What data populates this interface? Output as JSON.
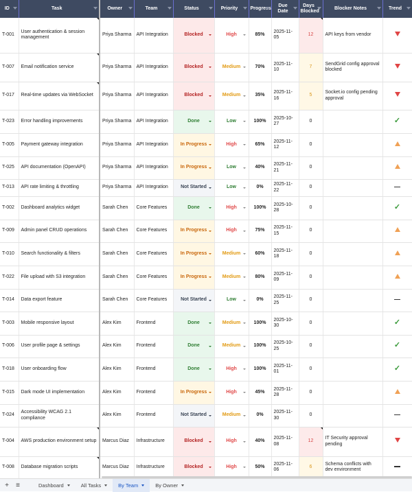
{
  "columns": [
    "ID",
    "Task",
    "Owner",
    "Team",
    "Status",
    "Priority",
    "Progress",
    "Due Date",
    "Days Blocked",
    "Blocker Notes",
    "Trend"
  ],
  "rows": [
    {
      "id": "T-001",
      "task": "User authentication & session management",
      "owner": "Priya Sharma",
      "team": "API Integration",
      "status": "Blocked",
      "priority": "High",
      "progress": "85%",
      "due": "2025-11-05",
      "days": "12",
      "notes": "API keys from vendor",
      "trend": "down"
    },
    {
      "id": "T-007",
      "task": "Email notification service",
      "owner": "Priya Sharma",
      "team": "API Integration",
      "status": "Blocked",
      "priority": "Medium",
      "progress": "70%",
      "due": "2025-11-10",
      "days": "7",
      "notes": "SendGrid config approval blocked",
      "trend": "down"
    },
    {
      "id": "T-017",
      "task": "Real-time updates via WebSocket",
      "owner": "Priya Sharma",
      "team": "API Integration",
      "status": "Blocked",
      "priority": "Medium",
      "progress": "35%",
      "due": "2025-11-16",
      "days": "5",
      "notes": "Socket.io config pending approval",
      "trend": "down"
    },
    {
      "id": "T-023",
      "task": "Error handling improvements",
      "owner": "Priya Sharma",
      "team": "API Integration",
      "status": "Done",
      "priority": "Low",
      "progress": "100%",
      "due": "2025-10-27",
      "days": "0",
      "notes": "",
      "trend": "check"
    },
    {
      "id": "T-005",
      "task": "Payment gateway integration",
      "owner": "Priya Sharma",
      "team": "API Integration",
      "status": "In Progress",
      "priority": "High",
      "progress": "65%",
      "due": "2025-11-12",
      "days": "0",
      "notes": "",
      "trend": "up"
    },
    {
      "id": "T-025",
      "task": "API documentation (OpenAPI)",
      "owner": "Priya Sharma",
      "team": "API Integration",
      "status": "In Progress",
      "priority": "Low",
      "progress": "40%",
      "due": "2025-11-21",
      "days": "0",
      "notes": "",
      "trend": "up"
    },
    {
      "id": "T-013",
      "task": "API rate limiting & throttling",
      "owner": "Priya Sharma",
      "team": "API Integration",
      "status": "Not Started",
      "priority": "Low",
      "progress": "0%",
      "due": "2025-11-22",
      "days": "0",
      "notes": "",
      "trend": "flat"
    },
    {
      "id": "T-002",
      "task": "Dashboard analytics widget",
      "owner": "Sarah Chen",
      "team": "Core Features",
      "status": "Done",
      "priority": "High",
      "progress": "100%",
      "due": "2025-10-28",
      "days": "0",
      "notes": "",
      "trend": "check"
    },
    {
      "id": "T-009",
      "task": "Admin panel CRUD operations",
      "owner": "Sarah Chen",
      "team": "Core Features",
      "status": "In Progress",
      "priority": "High",
      "progress": "75%",
      "due": "2025-11-15",
      "days": "0",
      "notes": "",
      "trend": "up"
    },
    {
      "id": "T-010",
      "task": "Search functionality & filters",
      "owner": "Sarah Chen",
      "team": "Core Features",
      "status": "In Progress",
      "priority": "Medium",
      "progress": "60%",
      "due": "2025-11-18",
      "days": "0",
      "notes": "",
      "trend": "up"
    },
    {
      "id": "T-022",
      "task": "File upload with S3 integration",
      "owner": "Sarah Chen",
      "team": "Core Features",
      "status": "In Progress",
      "priority": "Medium",
      "progress": "80%",
      "due": "2025-11-09",
      "days": "0",
      "notes": "",
      "trend": "up"
    },
    {
      "id": "T-014",
      "task": "Data export feature",
      "owner": "Sarah Chen",
      "team": "Core Features",
      "status": "Not Started",
      "priority": "Low",
      "progress": "0%",
      "due": "2025-11-25",
      "days": "0",
      "notes": "",
      "trend": "flat"
    },
    {
      "id": "T-003",
      "task": "Mobile responsive layout",
      "owner": "Alex Kim",
      "team": "Frontend",
      "status": "Done",
      "priority": "Medium",
      "progress": "100%",
      "due": "2025-10-30",
      "days": "0",
      "notes": "",
      "trend": "check"
    },
    {
      "id": "T-006",
      "task": "User profile page & settings",
      "owner": "Alex Kim",
      "team": "Frontend",
      "status": "Done",
      "priority": "Medium",
      "progress": "100%",
      "due": "2025-10-25",
      "days": "0",
      "notes": "",
      "trend": "check"
    },
    {
      "id": "T-018",
      "task": "User onboarding flow",
      "owner": "Alex Kim",
      "team": "Frontend",
      "status": "Done",
      "priority": "High",
      "progress": "100%",
      "due": "2025-11-01",
      "days": "0",
      "notes": "",
      "trend": "check"
    },
    {
      "id": "T-015",
      "task": "Dark mode UI implementation",
      "owner": "Alex Kim",
      "team": "Frontend",
      "status": "In Progress",
      "priority": "High",
      "progress": "45%",
      "due": "2025-11-28",
      "days": "0",
      "notes": "",
      "trend": "up"
    },
    {
      "id": "T-024",
      "task": "Accessibility WCAG 2.1 compliance",
      "owner": "Alex Kim",
      "team": "Frontend",
      "status": "Not Started",
      "priority": "Medium",
      "progress": "0%",
      "due": "2025-11-30",
      "days": "0",
      "notes": "",
      "trend": "flat"
    },
    {
      "id": "T-004",
      "task": "AWS production environment setup",
      "owner": "Marcus Diaz",
      "team": "Infrastructure",
      "status": "Blocked",
      "priority": "High",
      "progress": "40%",
      "due": "2025-11-08",
      "days": "12",
      "notes": "IT Security approval pending",
      "trend": "down"
    },
    {
      "id": "T-008",
      "task": "Database migration scripts",
      "owner": "Marcus Diaz",
      "team": "Infrastructure",
      "status": "Blocked",
      "priority": "High",
      "progress": "50%",
      "due": "2025-11-06",
      "days": "6",
      "notes": "Schema conflicts with dev environment",
      "trend": "flat"
    }
  ],
  "sheet_tabs": [
    {
      "label": "Dashboard",
      "active": false
    },
    {
      "label": "All Tasks",
      "active": false
    },
    {
      "label": "By Team",
      "active": true
    },
    {
      "label": "By Owner",
      "active": false
    }
  ],
  "colors": {
    "header": "#3e4a61",
    "blocked": "#b42323",
    "in_progress": "#c8660a",
    "done": "#2e7d32",
    "high": "#e04848",
    "medium": "#e29a12",
    "low": "#2e7d32"
  }
}
